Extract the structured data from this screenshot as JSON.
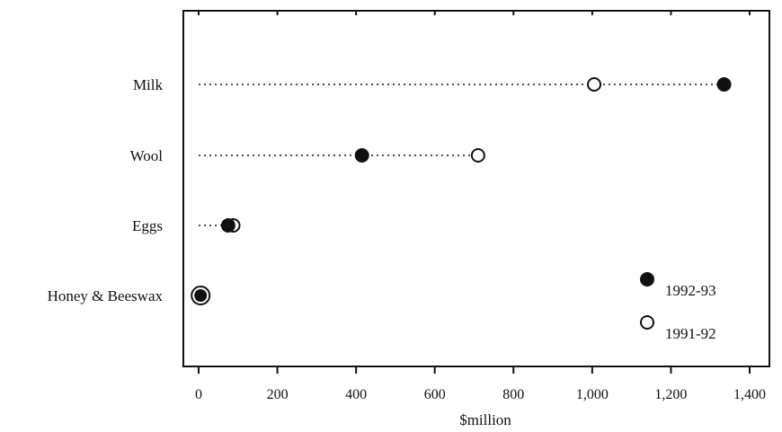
{
  "chart_data": {
    "type": "dot",
    "categories": [
      "Milk",
      "Wool",
      "Eggs",
      "Honey & Beeswax"
    ],
    "series": [
      {
        "name": "1992-93",
        "marker": "filled",
        "values": [
          1335,
          415,
          75,
          5
        ]
      },
      {
        "name": "1991-92",
        "marker": "open",
        "values": [
          1005,
          710,
          88,
          5
        ]
      }
    ],
    "xlabel": "$million",
    "ylabel": "",
    "xlim": [
      0,
      1400
    ],
    "xticks": [
      0,
      200,
      400,
      600,
      800,
      1000,
      1200,
      1400
    ],
    "xtick_labels": [
      "0",
      "200",
      "400",
      "600",
      "800",
      "1,000",
      "1,200",
      "1,400"
    ],
    "legend_position": "bottom-right",
    "grid": false,
    "leader_lines": "dotted"
  }
}
